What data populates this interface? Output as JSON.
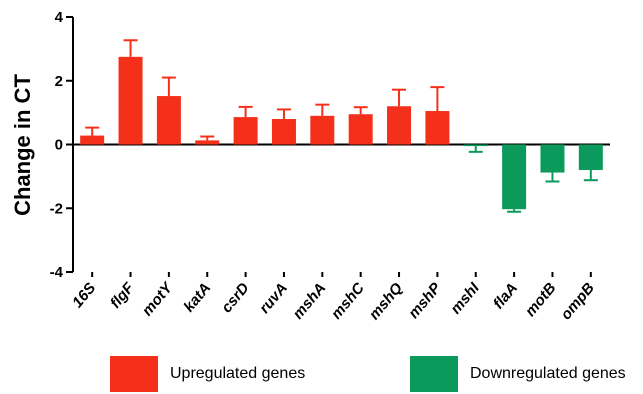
{
  "chart_data": {
    "type": "bar",
    "ylabel": "Change in CT",
    "xlabel": "",
    "ylim": [
      -4,
      4
    ],
    "yticks": [
      "-4",
      "-2",
      "0",
      "2",
      "4"
    ],
    "categories": [
      "16S",
      "flgF",
      "motY",
      "katA",
      "csrD",
      "ruvA",
      "mshA",
      "mshC",
      "mshQ",
      "mshP",
      "mshI",
      "flaA",
      "motB",
      "ompB"
    ],
    "values": [
      0.28,
      2.75,
      1.52,
      0.13,
      0.86,
      0.8,
      0.9,
      0.95,
      1.2,
      1.05,
      -0.05,
      -2.03,
      -0.88,
      -0.8
    ],
    "errors": [
      0.25,
      0.52,
      0.58,
      0.12,
      0.32,
      0.3,
      0.35,
      0.22,
      0.52,
      0.75,
      0.18,
      0.08,
      0.28,
      0.32
    ],
    "group": [
      "up",
      "up",
      "up",
      "up",
      "up",
      "up",
      "up",
      "up",
      "up",
      "up",
      "down",
      "down",
      "down",
      "down"
    ],
    "colors": {
      "up": "#f5301a",
      "down": "#0b9a5c"
    },
    "legend": [
      {
        "key": "up",
        "label": "Upregulated genes"
      },
      {
        "key": "down",
        "label": "Downregulated genes"
      }
    ],
    "grid": false
  }
}
